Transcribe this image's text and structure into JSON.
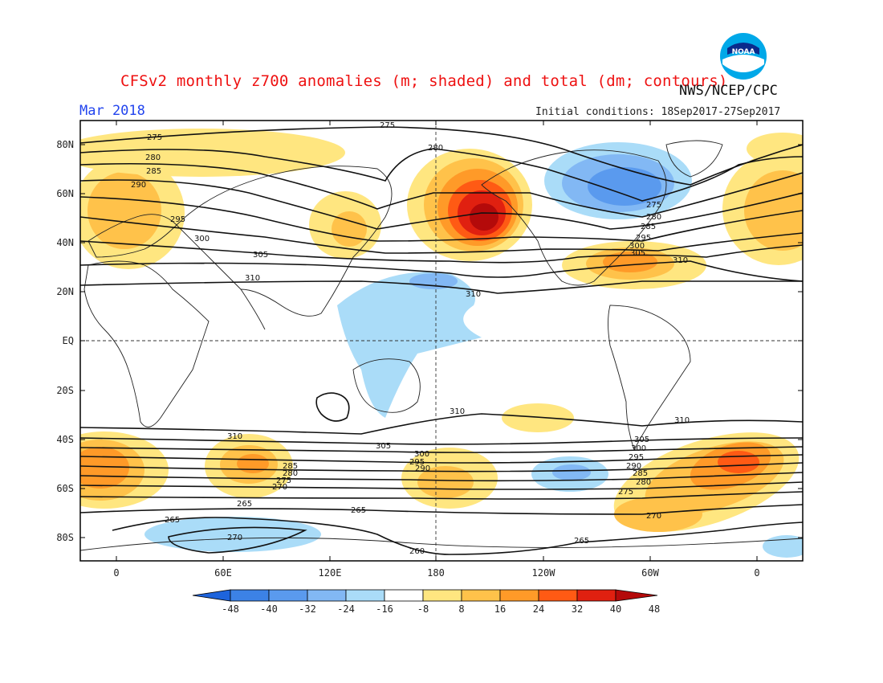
{
  "header": {
    "title": "CFSv2 monthly z700 anomalies (m; shaded) and total (dm; contours)",
    "agency": "NWS/NCEP/CPC",
    "valid_month": "Mar 2018",
    "initial_conditions": "Initial conditions: 18Sep2017-27Sep2017",
    "logo_text": "NOAA"
  },
  "axes": {
    "lat_labels": [
      "80N",
      "60N",
      "40N",
      "20N",
      "EQ",
      "20S",
      "40S",
      "60S",
      "80S"
    ],
    "lon_labels": [
      "0",
      "60E",
      "120E",
      "180",
      "120W",
      "60W",
      "0"
    ]
  },
  "colorbar": {
    "levels": [
      "-48",
      "-40",
      "-32",
      "-24",
      "-16",
      "-8",
      "8",
      "16",
      "24",
      "32",
      "40",
      "48"
    ],
    "colors": [
      "#1e64dc",
      "#3c82e6",
      "#5a9aee",
      "#82b8f4",
      "#aadcf8",
      "#ffffff",
      "#ffe680",
      "#ffc24a",
      "#ff9a28",
      "#ff5a14",
      "#e02010",
      "#b40a0a"
    ]
  },
  "contour_labels": {
    "nh": [
      "275",
      "280",
      "285",
      "290",
      "295",
      "300",
      "305",
      "310"
    ],
    "sh": [
      "310",
      "305",
      "300",
      "295",
      "290",
      "285",
      "280",
      "275",
      "270",
      "265",
      "260"
    ]
  }
}
